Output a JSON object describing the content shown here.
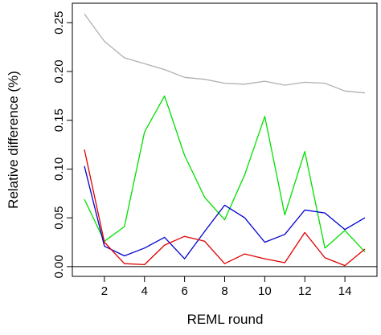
{
  "chart_data": {
    "type": "line",
    "title": "",
    "xlabel": "REML round",
    "ylabel": "Relative difference (%)",
    "x": [
      1,
      2,
      3,
      4,
      5,
      6,
      7,
      8,
      9,
      10,
      11,
      12,
      13,
      14,
      15
    ],
    "xlim": [
      0.4,
      15.6
    ],
    "ylim": [
      -0.01,
      0.27
    ],
    "xticks": [
      2,
      4,
      6,
      8,
      10,
      12,
      14
    ],
    "yticks": [
      0.0,
      0.05,
      0.1,
      0.15,
      0.2,
      0.25
    ],
    "xtick_labels": [
      "2",
      "4",
      "6",
      "8",
      "10",
      "12",
      "14"
    ],
    "ytick_labels": [
      "0.00",
      "0.05",
      "0.10",
      "0.15",
      "0.20",
      "0.25"
    ],
    "reference_line": 0,
    "grid": false,
    "legend": "none",
    "series": [
      {
        "color": "#b0b0b0",
        "values": [
          0.259,
          0.231,
          0.214,
          0.208,
          0.202,
          0.194,
          0.192,
          0.188,
          0.187,
          0.19,
          0.186,
          0.189,
          0.188,
          0.18,
          0.178
        ]
      },
      {
        "color": "#00e000",
        "values": [
          0.069,
          0.026,
          0.041,
          0.138,
          0.175,
          0.114,
          0.071,
          0.048,
          0.094,
          0.154,
          0.053,
          0.118,
          0.019,
          0.037,
          0.015
        ]
      },
      {
        "color": "#0000cc",
        "values": [
          0.103,
          0.021,
          0.011,
          0.019,
          0.03,
          0.008,
          0.036,
          0.063,
          0.05,
          0.025,
          0.033,
          0.058,
          0.055,
          0.038,
          0.05
        ]
      },
      {
        "color": "#e00000",
        "values": [
          0.12,
          0.025,
          0.003,
          0.002,
          0.022,
          0.031,
          0.026,
          0.003,
          0.013,
          0.008,
          0.004,
          0.035,
          0.009,
          0.001,
          0.018
        ]
      }
    ]
  }
}
